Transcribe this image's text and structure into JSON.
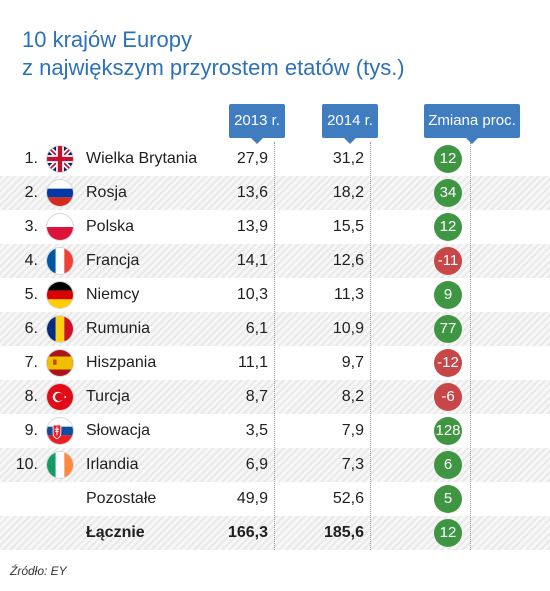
{
  "title": {
    "line1": "10 krajów Europy",
    "line2": "z największym przyrostem etatów (tys.)"
  },
  "headers": {
    "y2013": "2013 r.",
    "y2014": "2014 r.",
    "change": "Zmiana proc."
  },
  "colors": {
    "title": "#2d72b8",
    "header_bg": "#3f7cc0",
    "positive": "#3f9642",
    "negative": "#c74648"
  },
  "rows": [
    {
      "num": "1.",
      "flag_icon": "uk-flag-icon",
      "country": "Wielka Brytania",
      "v2013": "27,9",
      "v2014": "31,2",
      "change": "12"
    },
    {
      "num": "2.",
      "flag_icon": "russia-flag-icon",
      "country": "Rosja",
      "v2013": "13,6",
      "v2014": "18,2",
      "change": "34"
    },
    {
      "num": "3.",
      "flag_icon": "poland-flag-icon",
      "country": "Polska",
      "v2013": "13,9",
      "v2014": "15,5",
      "change": "12"
    },
    {
      "num": "4.",
      "flag_icon": "france-flag-icon",
      "country": "Francja",
      "v2013": "14,1",
      "v2014": "12,6",
      "change": "-11"
    },
    {
      "num": "5.",
      "flag_icon": "germany-flag-icon",
      "country": "Niemcy",
      "v2013": "10,3",
      "v2014": "11,3",
      "change": "9"
    },
    {
      "num": "6.",
      "flag_icon": "romania-flag-icon",
      "country": "Rumunia",
      "v2013": "6,1",
      "v2014": "10,9",
      "change": "77"
    },
    {
      "num": "7.",
      "flag_icon": "spain-flag-icon",
      "country": "Hiszpania",
      "v2013": "11,1",
      "v2014": "9,7",
      "change": "-12"
    },
    {
      "num": "8.",
      "flag_icon": "turkey-flag-icon",
      "country": "Turcja",
      "v2013": "8,7",
      "v2014": "8,2",
      "change": "-6"
    },
    {
      "num": "9.",
      "flag_icon": "slovakia-flag-icon",
      "country": "Słowacja",
      "v2013": "3,5",
      "v2014": "7,9",
      "change": "128"
    },
    {
      "num": "10.",
      "flag_icon": "ireland-flag-icon",
      "country": "Irlandia",
      "v2013": "6,9",
      "v2014": "7,3",
      "change": "6"
    },
    {
      "num": "",
      "flag_icon": "",
      "country": "Pozostałe",
      "v2013": "49,9",
      "v2014": "52,6",
      "change": "5"
    },
    {
      "num": "",
      "flag_icon": "",
      "country": "Łącznie",
      "v2013": "166,3",
      "v2014": "185,6",
      "change": "12"
    }
  ],
  "source": "Źródło: EY"
}
